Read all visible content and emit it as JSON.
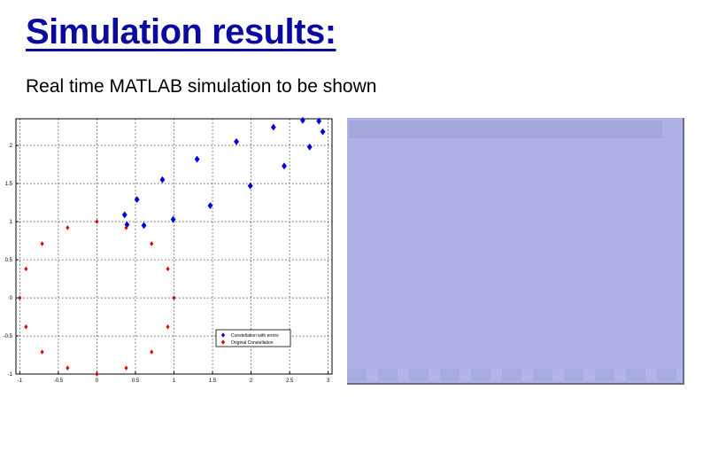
{
  "slide": {
    "title": "Simulation results:",
    "subtitle": "Real time MATLAB simulation to be shown"
  },
  "colors": {
    "title": "#0a0aa0",
    "errors_series": "#0000e0",
    "original_series": "#e00000",
    "video_panel": "#aeb0e6"
  },
  "chart_data": {
    "type": "scatter",
    "title": "",
    "xlabel": "",
    "ylabel": "",
    "xlim": [
      -1.05,
      3.05
    ],
    "ylim": [
      -1,
      2.35
    ],
    "xticks": [
      -1,
      -0.5,
      0,
      0.5,
      1,
      1.5,
      2,
      2.5,
      3
    ],
    "yticks": [
      -1,
      -0.5,
      0,
      0.5,
      1,
      1.5,
      2
    ],
    "xtick_labels": [
      "-1",
      "-0.5",
      "0",
      "0.5",
      "1",
      "1.5",
      "2",
      "2.5",
      "3"
    ],
    "ytick_labels": [
      "-1",
      "-0.5",
      "0",
      "0.5",
      "1",
      "1.5",
      "2"
    ],
    "grid": true,
    "legend_position": "bottom-right",
    "series": [
      {
        "name": "Constellation with errors",
        "marker": "diamond",
        "color": "#0000e0",
        "points": [
          [
            0.36,
            1.09
          ],
          [
            0.39,
            0.96
          ],
          [
            0.52,
            1.29
          ],
          [
            0.61,
            0.95
          ],
          [
            0.85,
            1.55
          ],
          [
            0.99,
            1.03
          ],
          [
            1.3,
            1.82
          ],
          [
            1.47,
            1.21
          ],
          [
            1.81,
            2.05
          ],
          [
            1.99,
            1.47
          ],
          [
            2.29,
            2.24
          ],
          [
            2.43,
            1.73
          ],
          [
            2.67,
            2.33
          ],
          [
            2.76,
            1.98
          ],
          [
            2.88,
            2.32
          ],
          [
            2.93,
            2.18
          ]
        ]
      },
      {
        "name": "Original Constellation",
        "marker": "diamond",
        "color": "#e00000",
        "points": [
          [
            -1.0,
            0.0
          ],
          [
            -0.92,
            0.38
          ],
          [
            -0.92,
            -0.38
          ],
          [
            -0.71,
            0.71
          ],
          [
            -0.71,
            -0.71
          ],
          [
            -0.38,
            0.92
          ],
          [
            -0.38,
            -0.92
          ],
          [
            0.0,
            1.0
          ],
          [
            0.0,
            -1.0
          ],
          [
            0.38,
            0.92
          ],
          [
            0.38,
            -0.92
          ],
          [
            0.71,
            0.71
          ],
          [
            0.71,
            -0.71
          ],
          [
            0.92,
            0.38
          ],
          [
            0.92,
            -0.38
          ],
          [
            1.0,
            0.0
          ]
        ]
      }
    ]
  },
  "video_panel": {
    "label": ""
  }
}
